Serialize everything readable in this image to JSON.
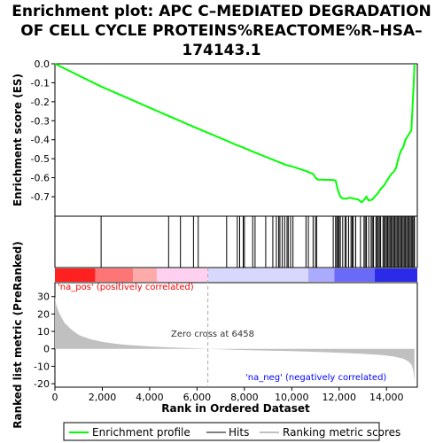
{
  "chart_data": [
    {
      "type": "line",
      "title_lines": [
        "Enrichment plot: APC C–MEDIATED DEGRADATION",
        "OF CELL CYCLE PROTEINS%REACTOME%R–HSA–",
        "174143.1"
      ],
      "ylabel": "Enrichment score (ES)",
      "xlim": [
        0,
        15300
      ],
      "ylim": [
        -0.77,
        0.0
      ],
      "yticks": [
        0.0,
        -0.1,
        -0.2,
        -0.3,
        -0.4,
        -0.5,
        -0.6,
        -0.7
      ],
      "ytick_labels": [
        "0.0",
        "-0.1",
        "-0.2",
        "-0.3",
        "-0.4",
        "-0.5",
        "-0.6",
        "-0.7"
      ],
      "grid": false,
      "series": [
        {
          "name": "Enrichment profile",
          "color": "#00ff00",
          "x": [
            0,
            1950,
            1985,
            2050,
            4800,
            5300,
            5850,
            6050,
            7250,
            7700,
            7850,
            8000,
            8300,
            8500,
            8900,
            9200,
            9400,
            9550,
            9700,
            9850,
            10000,
            10600,
            10700,
            10900,
            11000,
            11100,
            11750,
            11850,
            11950,
            12050,
            12150,
            12300,
            12450,
            12600,
            12800,
            12950,
            13100,
            13150,
            13250,
            13400,
            13500,
            13650,
            13750,
            13900,
            14000,
            14100,
            14200,
            14300,
            14400,
            14500,
            14600,
            14700,
            14800,
            14900,
            15000,
            15050,
            15100,
            15150,
            15180
          ],
          "y": [
            0.0,
            -0.12,
            -0.122,
            -0.125,
            -0.275,
            -0.302,
            -0.332,
            -0.342,
            -0.405,
            -0.43,
            -0.436,
            -0.444,
            -0.46,
            -0.47,
            -0.49,
            -0.505,
            -0.515,
            -0.522,
            -0.53,
            -0.536,
            -0.54,
            -0.565,
            -0.57,
            -0.58,
            -0.6,
            -0.61,
            -0.612,
            -0.615,
            -0.665,
            -0.7,
            -0.71,
            -0.71,
            -0.705,
            -0.71,
            -0.715,
            -0.73,
            -0.71,
            -0.7,
            -0.72,
            -0.715,
            -0.7,
            -0.68,
            -0.66,
            -0.64,
            -0.62,
            -0.6,
            -0.58,
            -0.57,
            -0.55,
            -0.5,
            -0.46,
            -0.44,
            -0.4,
            -0.38,
            -0.36,
            -0.35,
            -0.22,
            -0.1,
            0.0
          ]
        }
      ],
      "hits_x": [
        1950,
        4800,
        5300,
        5850,
        6050,
        7250,
        7700,
        7800,
        7950,
        8000,
        8350,
        8450,
        8900,
        9200,
        9350,
        9450,
        9500,
        9600,
        9700,
        9800,
        9850,
        9950,
        10050,
        10600,
        10700,
        10900,
        11000,
        11050,
        11750,
        11850,
        11900,
        11950,
        12000,
        12050,
        12150,
        12250,
        12300,
        12400,
        12500,
        12550,
        12600,
        12700,
        12900,
        13050,
        13100,
        13150,
        13250,
        13350,
        13400,
        13450,
        13550,
        13600,
        13650,
        13700,
        13750,
        13850,
        13900,
        13950,
        14000,
        14050,
        14100,
        14150,
        14200,
        14250,
        14300,
        14350,
        14400,
        14450,
        14500,
        14550,
        14600,
        14650,
        14700,
        14750,
        14800,
        14850,
        14900,
        14950,
        15000,
        15050,
        15100,
        15150,
        15180
      ],
      "hits_label": "Hits"
    },
    {
      "type": "area",
      "xlabel": "Rank in Ordered Dataset",
      "ylabel": "Ranked list metric (PreRanked)",
      "xlim": [
        0,
        15300
      ],
      "ylim": [
        -22,
        38
      ],
      "xticks": [
        0,
        2000,
        4000,
        6000,
        8000,
        10000,
        12000,
        14000
      ],
      "xtick_labels": [
        "0",
        "2,000",
        "4,000",
        "6,000",
        "8,000",
        "10,000",
        "12,000",
        "14,000"
      ],
      "yticks": [
        30,
        20,
        10,
        0,
        -10,
        -20
      ],
      "ytick_labels": [
        "30",
        "20",
        "10",
        "0",
        "-10",
        "-20"
      ],
      "series": [
        {
          "name": "Ranking metric scores",
          "color": "#c0c0c0",
          "x": [
            0,
            60,
            200,
            400,
            700,
            1000,
            1500,
            2000,
            2500,
            3000,
            4000,
            5000,
            6000,
            6458,
            7000,
            8000,
            9000,
            10000,
            11000,
            12000,
            13000,
            13800,
            14300,
            14700,
            14900,
            15050,
            15120,
            15180
          ],
          "y": [
            30,
            25,
            20,
            15,
            11,
            8,
            5.5,
            4,
            3,
            2.3,
            1.4,
            0.8,
            0.3,
            0,
            -0.3,
            -0.7,
            -1.0,
            -1.3,
            -1.7,
            -2.2,
            -2.9,
            -3.6,
            -4.4,
            -5.6,
            -7.0,
            -9.0,
            -12,
            -18
          ]
        }
      ],
      "zero_cross_label": "Zero cross at 6458",
      "zero_cross_x": 6458,
      "pos_label": "'na_pos' (positively correlated)",
      "pos_color": "#ff0000",
      "neg_label": "'na_neg' (negatively correlated)",
      "neg_color": "#0000ff"
    }
  ],
  "color_bar": {
    "colors": [
      "#ff2020",
      "#ff7575",
      "#ffaaaa",
      "#ffd0f0",
      "#d8d8ff",
      "#aaaaff",
      "#6a6af8",
      "#2a2ae8"
    ],
    "breaks": [
      0,
      1700,
      3300,
      4300,
      6458,
      10700,
      11800,
      13500,
      15300
    ]
  },
  "legend": {
    "items": [
      {
        "label": "Enrichment profile",
        "color": "#00ff00"
      },
      {
        "label": "Hits",
        "color": "#000000"
      },
      {
        "label": "Ranking metric scores",
        "color": "#c0c0c0"
      }
    ]
  }
}
